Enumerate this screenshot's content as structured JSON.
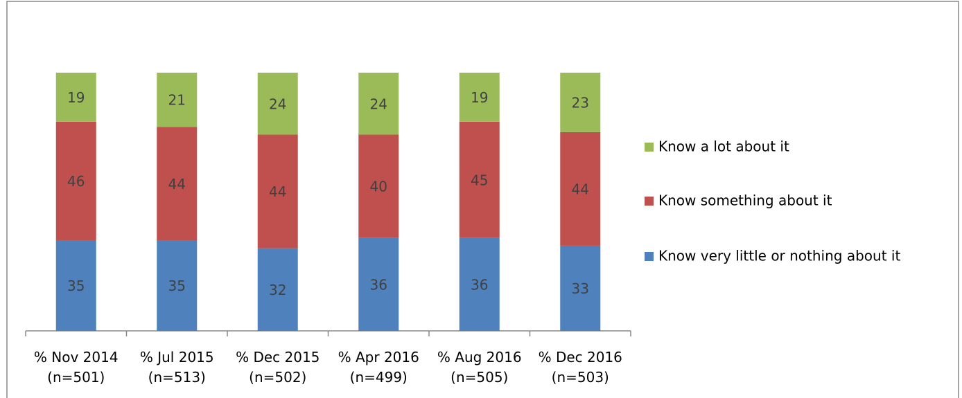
{
  "chart_data": {
    "type": "stacked_bar",
    "categories": [
      "% Nov 2014\n(n=501)",
      "% Jul 2015\n(n=513)",
      "% Dec 2015\n(n=502)",
      "% Apr 2016\n(n=499)",
      "% Aug 2016\n(n=505)",
      "% Dec 2016\n(n=503)"
    ],
    "series": [
      {
        "name": "Know very little or nothing about it",
        "color": "#4f81bd",
        "values": [
          35,
          35,
          32,
          36,
          36,
          33
        ]
      },
      {
        "name": "Know something about it",
        "color": "#c0504d",
        "values": [
          46,
          44,
          44,
          40,
          45,
          44
        ]
      },
      {
        "name": "Know a lot about it",
        "color": "#9bbb59",
        "values": [
          19,
          21,
          24,
          24,
          19,
          23
        ]
      }
    ],
    "ylim": [
      0,
      100
    ],
    "legend": "right"
  }
}
